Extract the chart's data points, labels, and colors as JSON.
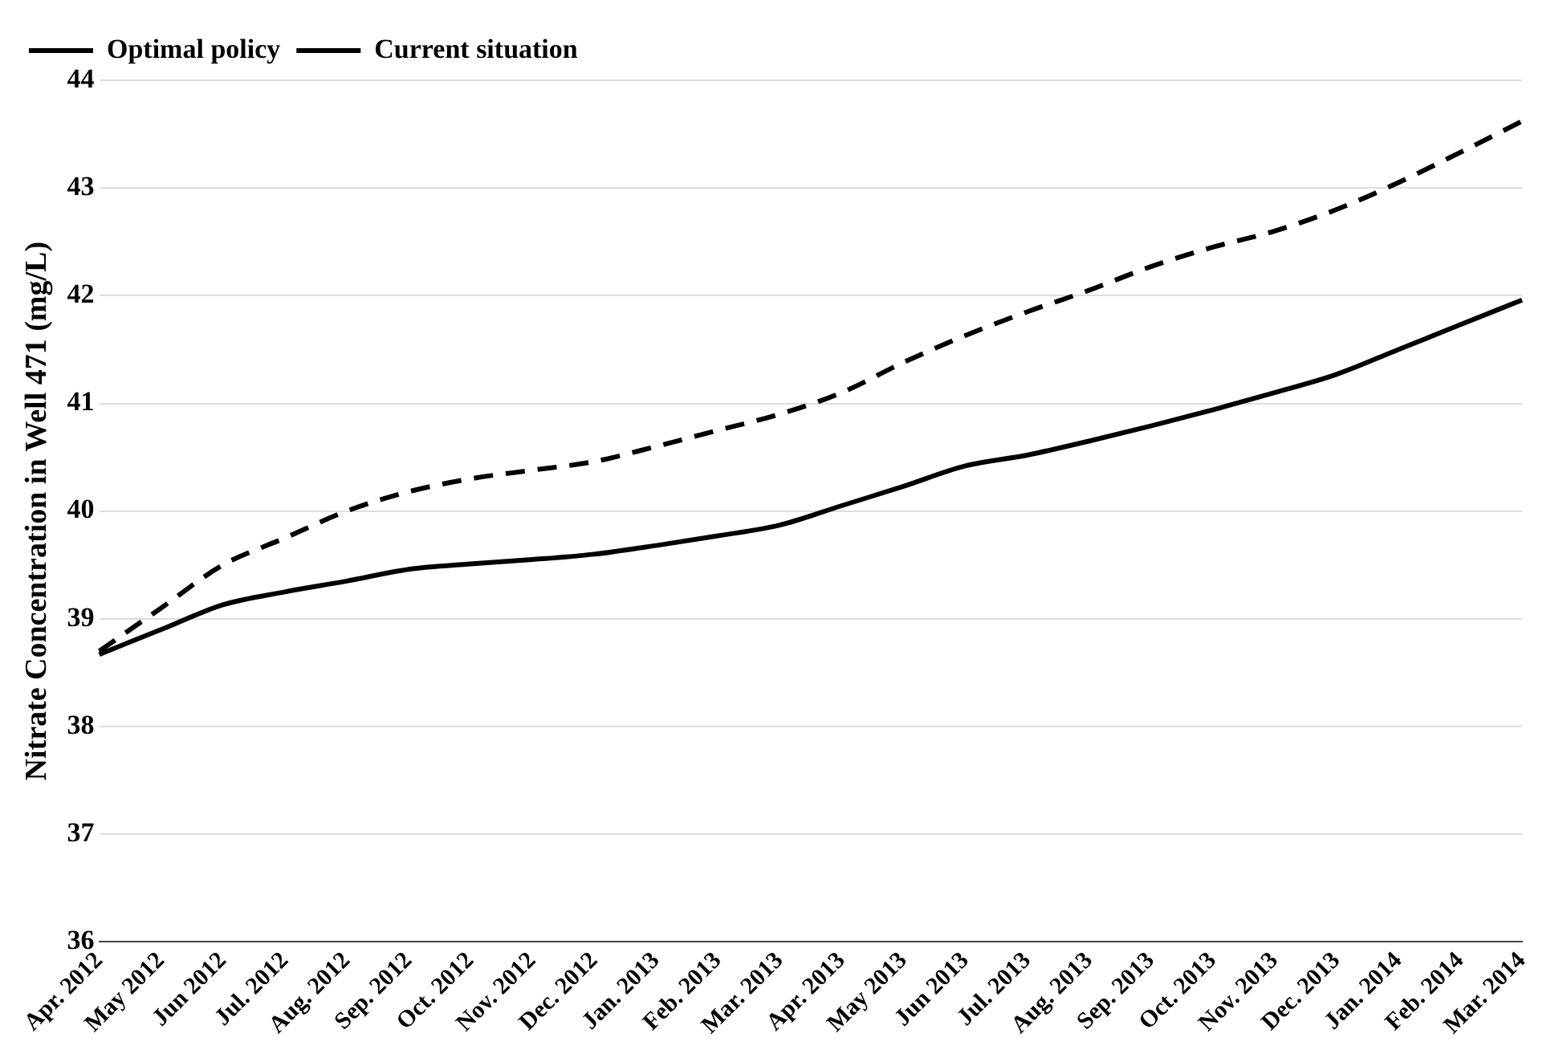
{
  "chart_data": {
    "type": "line",
    "ylabel": "Nitrate Concentration in Well 471 (mg/L)",
    "categories": [
      "Apr. 2012",
      "May 2012",
      "Jun 2012",
      "Jul. 2012",
      "Aug. 2012",
      "Sep. 2012",
      "Oct. 2012",
      "Nov. 2012",
      "Dec. 2012",
      "Jan. 2013",
      "Feb. 2013",
      "Mar. 2013",
      "Apr. 2013",
      "May 2013",
      "Jun 2013",
      "Jul. 2013",
      "Aug. 2013",
      "Sep. 2013",
      "Oct. 2013",
      "Nov. 2013",
      "Dec. 2013",
      "Jan. 2014",
      "Feb. 2014",
      "Mar. 2014"
    ],
    "series": [
      {
        "name": "Optimal policy",
        "color": "#000000",
        "line_style": "solid",
        "values": [
          38.67,
          38.9,
          39.13,
          39.25,
          39.35,
          39.46,
          39.51,
          39.55,
          39.6,
          39.68,
          39.77,
          39.87,
          40.05,
          40.23,
          40.42,
          40.52,
          40.65,
          40.79,
          40.94,
          41.1,
          41.27,
          41.5,
          41.73,
          41.96
        ]
      },
      {
        "name": "Current situation",
        "color": "#000000",
        "line_style": "dashed",
        "values": [
          38.7,
          39.1,
          39.5,
          39.75,
          40.0,
          40.18,
          40.3,
          40.38,
          40.46,
          40.6,
          40.75,
          40.9,
          41.1,
          41.38,
          41.63,
          41.85,
          42.05,
          42.27,
          42.45,
          42.6,
          42.8,
          43.05,
          43.33,
          43.62
        ]
      }
    ],
    "ylim": [
      36,
      44
    ],
    "yticks": [
      36,
      37,
      38,
      39,
      40,
      41,
      42,
      43,
      44
    ],
    "grid": "y",
    "legend": "top left",
    "marker": "none"
  }
}
